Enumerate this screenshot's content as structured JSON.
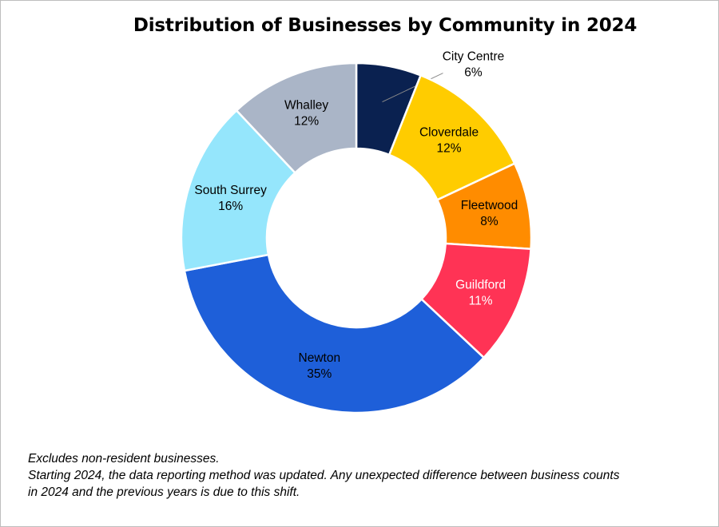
{
  "chart_data": {
    "type": "pie",
    "subtype": "donut",
    "title": "Distribution of Businesses by Community in 2024",
    "slices": [
      {
        "name": "City Centre",
        "value": 6,
        "label": "6%",
        "color": "#0a2150",
        "text_color": "#000000",
        "label_outside": true
      },
      {
        "name": "Cloverdale",
        "value": 12,
        "label": "12%",
        "color": "#ffcc00",
        "text_color": "#000000"
      },
      {
        "name": "Fleetwood",
        "value": 8,
        "label": "8%",
        "color": "#ff8c00",
        "text_color": "#000000"
      },
      {
        "name": "Guildford",
        "value": 11,
        "label": "11%",
        "color": "#ff3355",
        "text_color": "#ffffff"
      },
      {
        "name": "Newton",
        "value": 35,
        "label": "35%",
        "color": "#1e5fd9",
        "text_color": "#000000"
      },
      {
        "name": "South Surrey",
        "value": 16,
        "label": "16%",
        "color": "#95e6fc",
        "text_color": "#000000"
      },
      {
        "name": "Whalley",
        "value": 12,
        "label": "12%",
        "color": "#aab5c7",
        "text_color": "#000000"
      }
    ]
  },
  "notes": [
    "Excludes non-resident businesses.",
    "Starting 2024, the data reporting method was updated. Any unexpected difference between business counts",
    "in 2024 and the previous years is due to this shift."
  ]
}
